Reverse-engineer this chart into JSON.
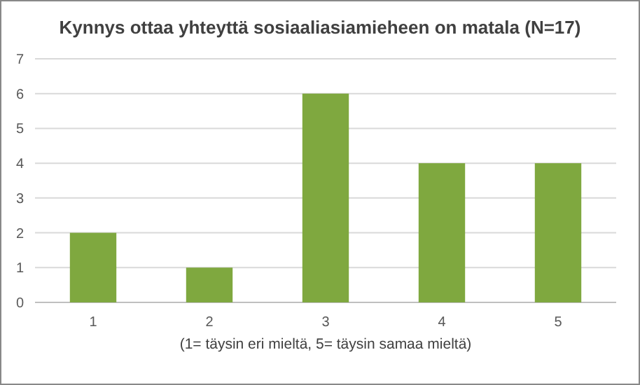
{
  "chart_data": {
    "type": "bar",
    "title": "Kynnys ottaa yhteyttä sosiaaliasiamieheen on matala (N=17)",
    "xlabel": "(1= täysin eri mieltä, 5= täysin samaa mieltä)",
    "categories": [
      "1",
      "2",
      "3",
      "4",
      "5"
    ],
    "series": [
      {
        "color": "#7fa83f",
        "values": [
          2,
          1,
          6,
          4,
          4
        ]
      }
    ],
    "ylim": [
      0,
      7
    ],
    "yticks": [
      0,
      1,
      2,
      3,
      4,
      5,
      6,
      7
    ],
    "grid": "y"
  }
}
